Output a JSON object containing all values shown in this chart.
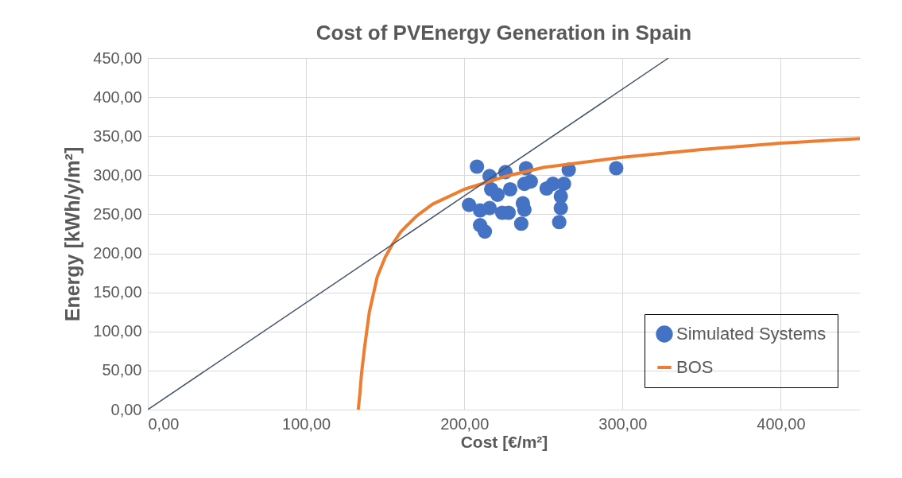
{
  "chart_data": {
    "type": "scatter",
    "title": "Cost of PVEnergy Generation in Spain",
    "xlabel": "Cost [€/m²]",
    "ylabel": "Energy [kWh/y/m²]",
    "xlim": [
      0,
      450
    ],
    "xticks": [
      {
        "value": 0,
        "label": "0,00"
      },
      {
        "value": 100,
        "label": "100,00"
      },
      {
        "value": 200,
        "label": "200,00"
      },
      {
        "value": 300,
        "label": "300,00"
      },
      {
        "value": 400,
        "label": "400,00"
      }
    ],
    "ylim": [
      0,
      450
    ],
    "yticks": [
      {
        "value": 0,
        "label": "0,00"
      },
      {
        "value": 50,
        "label": "50,00"
      },
      {
        "value": 100,
        "label": "100,00"
      },
      {
        "value": 150,
        "label": "150,00"
      },
      {
        "value": 200,
        "label": "200,00"
      },
      {
        "value": 250,
        "label": "250,00"
      },
      {
        "value": 300,
        "label": "300,00"
      },
      {
        "value": 350,
        "label": "350,00"
      },
      {
        "value": 400,
        "label": "400,00"
      },
      {
        "value": 450,
        "label": "450,00"
      }
    ],
    "grid": true,
    "legend": "bottom right",
    "series": [
      {
        "name": "Simulated Systems",
        "color": "#4472c4",
        "marker": "circle",
        "x": [
          208,
          216,
          226,
          239,
          266,
          296,
          238,
          242,
          217,
          252,
          256,
          260,
          263,
          261,
          261,
          260,
          236,
          213,
          210,
          203,
          207,
          237,
          228,
          224,
          218,
          214,
          210,
          221,
          229,
          216,
          238
        ],
        "values": [
          311,
          299,
          304,
          309,
          307,
          309,
          289,
          292,
          282,
          283,
          289,
          null,
          289,
          273,
          258,
          240,
          238,
          228,
          236,
          262,
          null,
          264,
          252,
          252,
          null,
          null,
          255,
          275,
          282,
          258,
          256
        ]
      },
      {
        "name": "BOS",
        "type": "line",
        "color": "#ed7d31",
        "x": [
          133,
          134,
          135,
          137,
          140,
          145,
          150,
          155,
          160,
          170,
          180,
          200,
          225,
          250,
          300,
          350,
          400,
          450
        ],
        "values": [
          0,
          20,
          45,
          80,
          125,
          170,
          195,
          213,
          228,
          248,
          263,
          282,
          298,
          310,
          323,
          333,
          341,
          347
        ]
      },
      {
        "type": "line",
        "color": "#44546a",
        "x": [
          0,
          329
        ],
        "values": [
          0,
          450
        ]
      }
    ]
  }
}
